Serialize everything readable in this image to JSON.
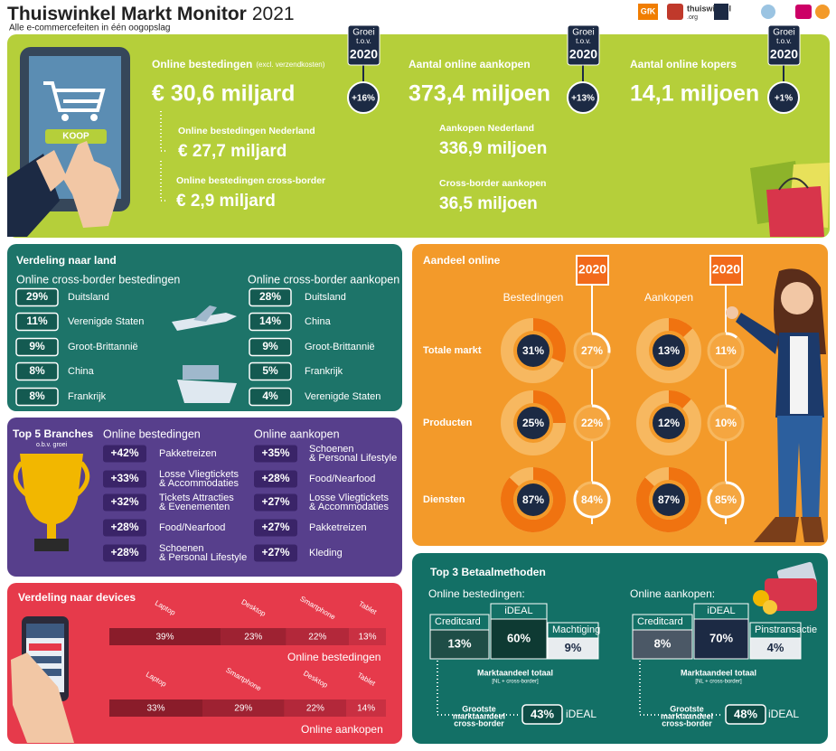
{
  "header": {
    "title": "Thuiswinkel Markt Monitor",
    "year": "2021",
    "subtitle": "Alle e-commercefeiten in één oogopslag",
    "logos": [
      "GfK",
      "thuiswinkel",
      ".org"
    ]
  },
  "growth_badge": {
    "line1": "Groei",
    "line2": "t.o.v.",
    "year": "2020"
  },
  "tablet_button": "KOOP",
  "kpis": [
    {
      "label": "Online bestedingen",
      "note": "(excl. verzendkosten)",
      "value": "€ 30,6 miljard",
      "growth": "+16%",
      "sub": [
        {
          "label": "Online bestedingen Nederland",
          "value": "€ 27,7 miljard"
        },
        {
          "label": "Online bestedingen cross-border",
          "value": "€ 2,9 miljard"
        }
      ]
    },
    {
      "label": "Aantal online aankopen",
      "value": "373,4 miljoen",
      "growth": "+13%",
      "sub": [
        {
          "label": "Aankopen Nederland",
          "value": "336,9 miljoen"
        },
        {
          "label": "Cross-border aankopen",
          "value": "36,5 miljoen"
        }
      ]
    },
    {
      "label": "Aantal online kopers",
      "value": "14,1 miljoen",
      "growth": "+1%",
      "sub": []
    }
  ],
  "countries": {
    "title": "Verdeling naar land",
    "columns": [
      {
        "heading": "Online cross-border bestedingen",
        "rows": [
          [
            "29%",
            "Duitsland"
          ],
          [
            "11%",
            "Verenigde Staten"
          ],
          [
            "9%",
            "Groot-Brittannië"
          ],
          [
            "8%",
            "China"
          ],
          [
            "8%",
            "Frankrijk"
          ]
        ]
      },
      {
        "heading": "Online cross-border aankopen",
        "rows": [
          [
            "28%",
            "Duitsland"
          ],
          [
            "14%",
            "China"
          ],
          [
            "9%",
            "Groot-Brittannië"
          ],
          [
            "5%",
            "Frankrijk"
          ],
          [
            "4%",
            "Verenigde Staten"
          ]
        ]
      }
    ]
  },
  "branches": {
    "title": "Top 5 Branches",
    "subtitle": "o.b.v. groei",
    "columns": [
      {
        "heading": "Online bestedingen",
        "rows": [
          {
            "growth": "+42%",
            "lines": [
              "Pakketreizen"
            ]
          },
          {
            "growth": "+33%",
            "lines": [
              "Losse Vliegtickets",
              "& Accommodaties"
            ]
          },
          {
            "growth": "+32%",
            "lines": [
              "Tickets Attracties",
              "& Evenementen"
            ]
          },
          {
            "growth": "+28%",
            "lines": [
              "Food/Nearfood"
            ]
          },
          {
            "growth": "+28%",
            "lines": [
              "Schoenen",
              "& Personal Lifestyle"
            ]
          }
        ]
      },
      {
        "heading": "Online aankopen",
        "rows": [
          {
            "growth": "+35%",
            "lines": [
              "Schoenen",
              "& Personal Lifestyle"
            ]
          },
          {
            "growth": "+28%",
            "lines": [
              "Food/Nearfood"
            ]
          },
          {
            "growth": "+27%",
            "lines": [
              "Losse Vliegtickets",
              "& Accommodaties"
            ]
          },
          {
            "growth": "+27%",
            "lines": [
              "Pakketreizen"
            ]
          },
          {
            "growth": "+27%",
            "lines": [
              "Kleding"
            ]
          }
        ]
      }
    ]
  },
  "devices": {
    "title": "Verdeling naar devices",
    "bars": [
      {
        "name": "Online bestedingen",
        "segments": [
          {
            "label": "Laptop",
            "value": 39,
            "value_label": "39%"
          },
          {
            "label": "Desktop",
            "value": 23,
            "value_label": "23%"
          },
          {
            "label": "Smartphone",
            "value": 22,
            "value_label": "22%"
          },
          {
            "label": "Tablet",
            "value": 13,
            "value_label": "13%"
          }
        ]
      },
      {
        "name": "Online aankopen",
        "segments": [
          {
            "label": "Laptop",
            "value": 33,
            "value_label": "33%"
          },
          {
            "label": "Smartphone",
            "value": 29,
            "value_label": "29%"
          },
          {
            "label": "Desktop",
            "value": 22,
            "value_label": "22%"
          },
          {
            "label": "Tablet",
            "value": 14,
            "value_label": "14%"
          }
        ]
      }
    ]
  },
  "share": {
    "title": "Aandeel online",
    "badge": "2020",
    "groups": [
      "Bestedingen",
      "Aankopen"
    ],
    "rows": [
      {
        "label": "Totale markt",
        "values": [
          {
            "value": 31,
            "label": "31%"
          },
          {
            "value": 27,
            "label": "27%"
          },
          {
            "value": 13,
            "label": "13%"
          },
          {
            "value": 11,
            "label": "11%"
          }
        ]
      },
      {
        "label": "Producten",
        "values": [
          {
            "value": 25,
            "label": "25%"
          },
          {
            "value": 22,
            "label": "22%"
          },
          {
            "value": 12,
            "label": "12%"
          },
          {
            "value": 10,
            "label": "10%"
          }
        ]
      },
      {
        "label": "Diensten",
        "values": [
          {
            "value": 87,
            "label": "87%"
          },
          {
            "value": 84,
            "label": "84%"
          },
          {
            "value": 87,
            "label": "87%"
          },
          {
            "value": 85,
            "label": "85%"
          }
        ]
      }
    ]
  },
  "payments": {
    "title": "Top 3 Betaalmethoden",
    "total_label": "Marktaandeel totaal",
    "total_note": "[NL + cross-border]",
    "cross_label": [
      "Grootste",
      "marktaandeel",
      "cross-border"
    ],
    "panels": [
      {
        "heading": "Online bestedingen:",
        "methods": [
          {
            "name": "Creditcard",
            "share": "13%"
          },
          {
            "name": "iDEAL",
            "share": "60%"
          },
          {
            "name": "Machtiging",
            "share": "9%"
          }
        ],
        "cross_share": "43%",
        "cross_method": "iDEAL"
      },
      {
        "heading": "Online aankopen:",
        "methods": [
          {
            "name": "Creditcard",
            "share": "8%"
          },
          {
            "name": "iDEAL",
            "share": "70%"
          },
          {
            "name": "Pinstransactie",
            "share": "4%"
          }
        ],
        "cross_share": "48%",
        "cross_method": "iDEAL"
      }
    ]
  }
}
